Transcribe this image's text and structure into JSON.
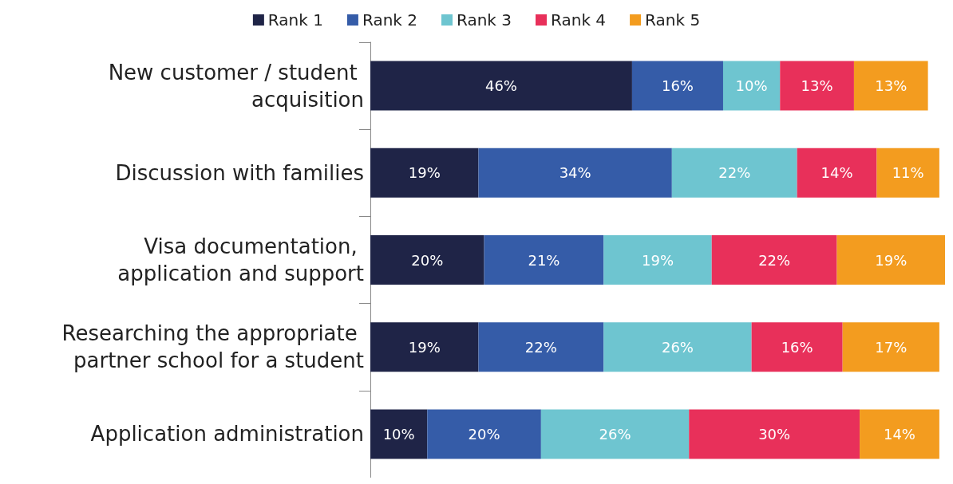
{
  "chart_data": {
    "type": "bar",
    "orientation": "horizontal",
    "stacked": true,
    "legend": "top",
    "categories": [
      "New customer / student acquisition",
      "Discussion with families",
      "Visa documentation, application and support",
      "Researching the appropriate partner school for a student",
      "Application administration"
    ],
    "series": [
      {
        "name": "Rank 1",
        "color": "#1f2447",
        "values": [
          46,
          19,
          20,
          19,
          10
        ],
        "value_labels": [
          "46%",
          "19%",
          "20%",
          "19%",
          "10%"
        ]
      },
      {
        "name": "Rank 2",
        "color": "#355ca8",
        "values": [
          16,
          34,
          21,
          22,
          20
        ],
        "value_labels": [
          "16%",
          "34%",
          "21%",
          "22%",
          "20%"
        ]
      },
      {
        "name": "Rank 3",
        "color": "#6ec5d0",
        "values": [
          10,
          22,
          19,
          26,
          26
        ],
        "value_labels": [
          "10%",
          "22%",
          "19%",
          "26%",
          "26%"
        ]
      },
      {
        "name": "Rank 4",
        "color": "#e8305a",
        "values": [
          13,
          14,
          22,
          16,
          30
        ],
        "value_labels": [
          "13%",
          "14%",
          "22%",
          "16%",
          "30%"
        ]
      },
      {
        "name": "Rank 5",
        "color": "#f39c1f",
        "values": [
          13,
          11,
          19,
          17,
          14
        ],
        "value_labels": [
          "13%",
          "11%",
          "19%",
          "17%",
          "14%"
        ]
      }
    ]
  }
}
